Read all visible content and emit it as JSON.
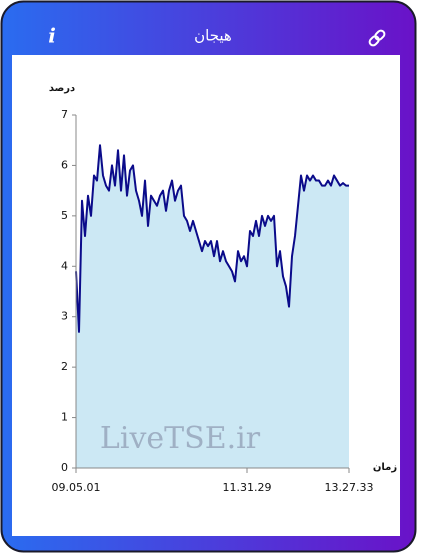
{
  "header": {
    "title": "هیجان",
    "info": "i"
  },
  "chart_data": {
    "type": "area",
    "ylabel": "درصد",
    "xlabel": "زمان",
    "watermark": "LiveTSE.ir",
    "categories": [
      "09.05.01",
      null,
      null,
      null,
      null,
      null,
      null,
      null,
      null,
      null,
      null,
      null,
      null,
      null,
      null,
      null,
      null,
      null,
      null,
      null,
      null,
      null,
      null,
      null,
      null,
      null,
      null,
      null,
      null,
      null,
      null,
      null,
      null,
      null,
      null,
      null,
      null,
      null,
      null,
      null,
      null,
      null,
      null,
      null,
      null,
      null,
      null,
      null,
      null,
      null,
      null,
      null,
      null,
      null,
      null,
      null,
      null,
      "11.31.29",
      null,
      null,
      null,
      null,
      null,
      null,
      null,
      null,
      null,
      null,
      null,
      null,
      null,
      null,
      null,
      null,
      null,
      null,
      null,
      null,
      null,
      null,
      null,
      null,
      null,
      null,
      null,
      null,
      null,
      null,
      null,
      null,
      null,
      "13.27.33"
    ],
    "values": [
      3.9,
      2.7,
      5.3,
      4.6,
      5.4,
      5.0,
      5.8,
      5.7,
      6.4,
      5.8,
      5.6,
      5.5,
      6.0,
      5.6,
      6.3,
      5.5,
      6.2,
      5.4,
      5.9,
      6.0,
      5.5,
      5.3,
      5.0,
      5.7,
      4.8,
      5.4,
      5.3,
      5.2,
      5.4,
      5.5,
      5.1,
      5.5,
      5.7,
      5.3,
      5.5,
      5.6,
      5.0,
      4.9,
      4.7,
      4.9,
      4.7,
      4.5,
      4.3,
      4.5,
      4.4,
      4.5,
      4.2,
      4.5,
      4.1,
      4.3,
      4.1,
      4.0,
      3.9,
      3.7,
      4.3,
      4.1,
      4.2,
      4.0,
      4.7,
      4.6,
      4.9,
      4.6,
      5.0,
      4.8,
      5.0,
      4.9,
      5.0,
      4.0,
      4.3,
      3.8,
      3.6,
      3.2,
      4.2,
      4.6,
      5.2,
      5.8,
      5.5,
      5.8,
      5.7,
      5.8,
      5.7,
      5.7,
      5.6,
      5.6,
      5.7,
      5.6,
      5.8,
      5.7,
      5.6,
      5.65,
      5.6,
      5.6
    ],
    "color": "#0b0b8a",
    "fill": "#cce8f4",
    "ylim": [
      0,
      7
    ],
    "yticks": [
      0,
      1,
      2,
      3,
      4,
      5,
      6,
      7
    ]
  }
}
